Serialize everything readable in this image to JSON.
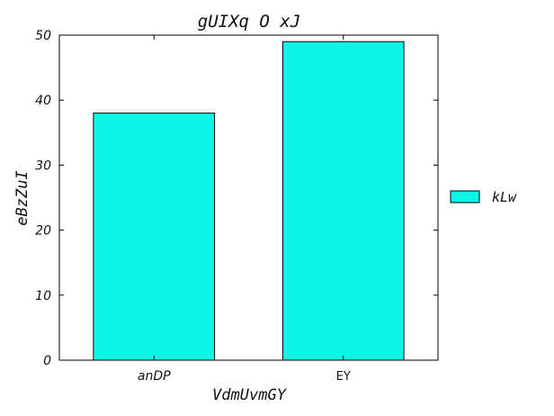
{
  "chart_data": {
    "type": "bar",
    "title": "gUIXq O xJ",
    "xlabel": "VdmUvmGY",
    "ylabel": "eBzZuI",
    "categories": [
      "anDP",
      "EY"
    ],
    "series": [
      {
        "name": "kLw",
        "values": [
          38,
          49
        ],
        "color": "#0ef5e8"
      }
    ],
    "ylim": [
      0,
      50
    ],
    "yticks": [
      0,
      10,
      20,
      30,
      40,
      50
    ],
    "grid": false,
    "legend_position": "right"
  }
}
